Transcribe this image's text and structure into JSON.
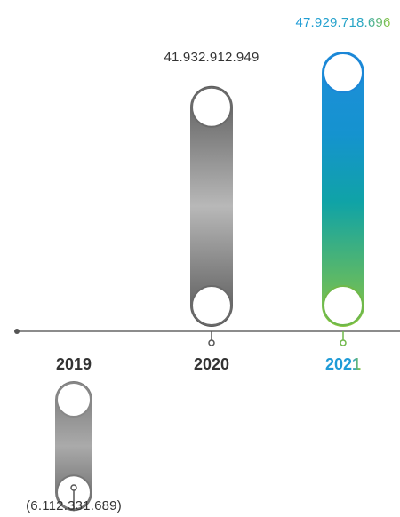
{
  "chart_data": {
    "type": "bar",
    "categories": [
      "2019",
      "2020",
      "2021"
    ],
    "values": [
      -6112331689,
      41932912949,
      47929718696
    ],
    "value_labels": [
      "(6.112.331.689)",
      "41.932.912.949",
      "47.929.718.696"
    ],
    "title": "",
    "xlabel": "",
    "ylabel": "",
    "grid": false,
    "legend": "none"
  },
  "colors": {
    "axis": "#666666",
    "year_default": "#333333",
    "year_highlight": "#1e9bd7",
    "value_default": "#333333",
    "value_highlight_start": "#1e9bd7",
    "value_highlight_end": "#8cc63f",
    "gray_dark": "#5d5d5d",
    "gray_light": "#b0b0b0",
    "blue": "#1b86d6",
    "teal": "#12a6a4",
    "green": "#8cc63f"
  }
}
